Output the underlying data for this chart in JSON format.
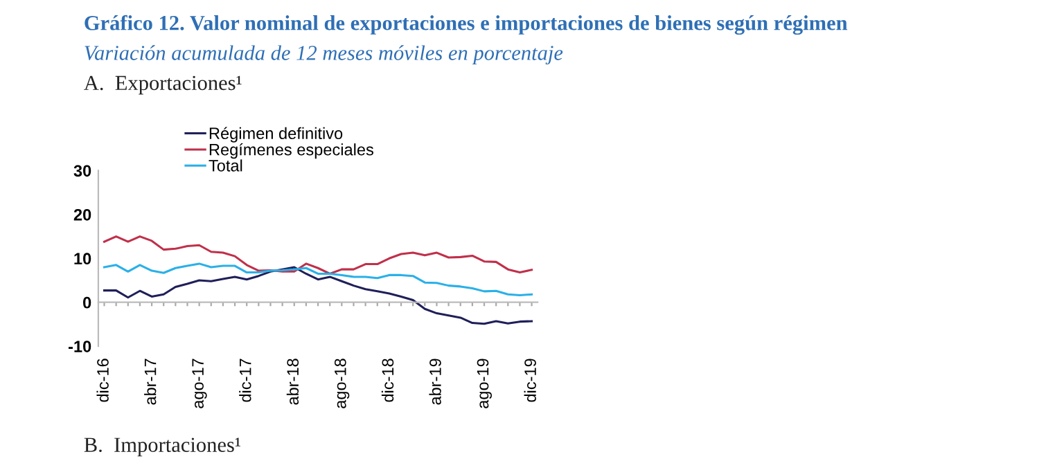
{
  "chart_data": {
    "type": "line",
    "title": "Gráfico 12. Valor nominal de exportaciones e importaciones de bienes según régimen",
    "subtitle": "Variación acumulada de 12 meses móviles en porcentaje",
    "xlabel": "A.  Exportaciones¹",
    "annotations": [
      "B.  Importaciones¹"
    ],
    "categories": [
      "dic-16",
      null,
      null,
      null,
      "abr-17",
      null,
      null,
      null,
      "ago-17",
      null,
      null,
      null,
      "dic-17",
      null,
      null,
      null,
      "abr-18",
      null,
      null,
      null,
      "ago-18",
      null,
      null,
      null,
      "dic-18",
      null,
      null,
      null,
      "abr-19",
      null,
      null,
      null,
      "ago-19",
      null,
      null,
      null,
      "dic-19"
    ],
    "series": [
      {
        "name": "Régimen definitivo",
        "color": "#1f1f5a",
        "values": [
          2.7,
          2.7,
          1.1,
          2.6,
          1.3,
          1.8,
          3.5,
          4.2,
          5.0,
          4.8,
          5.3,
          5.8,
          5.2,
          6.0,
          7.0,
          7.5,
          8.0,
          6.5,
          5.2,
          5.8,
          4.8,
          3.8,
          3.0,
          2.5,
          2.0,
          1.3,
          0.5,
          -1.5,
          -2.5,
          -3.0,
          -3.5,
          -4.7,
          -4.9,
          -4.3,
          -4.8,
          -4.4,
          -4.3
        ]
      },
      {
        "name": "Regímenes especiales",
        "color": "#c0304a",
        "values": [
          13.8,
          15.0,
          13.8,
          15.0,
          14.0,
          12.0,
          12.2,
          12.8,
          13.0,
          11.5,
          11.3,
          10.5,
          8.5,
          7.2,
          7.3,
          7.0,
          7.0,
          8.8,
          7.8,
          6.5,
          7.5,
          7.5,
          8.7,
          8.7,
          10.0,
          11.0,
          11.3,
          10.7,
          11.3,
          10.2,
          10.3,
          10.6,
          9.3,
          9.2,
          7.5,
          6.8,
          7.4
        ]
      },
      {
        "name": "Total",
        "color": "#2ab0e8",
        "values": [
          8.0,
          8.5,
          7.0,
          8.5,
          7.2,
          6.7,
          7.8,
          8.3,
          8.8,
          8.0,
          8.3,
          8.3,
          6.8,
          6.8,
          7.2,
          7.3,
          7.5,
          7.8,
          6.5,
          6.5,
          6.2,
          5.8,
          5.8,
          5.5,
          6.2,
          6.2,
          6.0,
          4.5,
          4.4,
          3.8,
          3.6,
          3.2,
          2.5,
          2.6,
          1.8,
          1.6,
          1.8
        ]
      }
    ],
    "ylim": [
      -10,
      30
    ],
    "yticks": [
      -10,
      0,
      10,
      20,
      30
    ],
    "legend": "top",
    "marker": "none",
    "line_style": "solid"
  }
}
